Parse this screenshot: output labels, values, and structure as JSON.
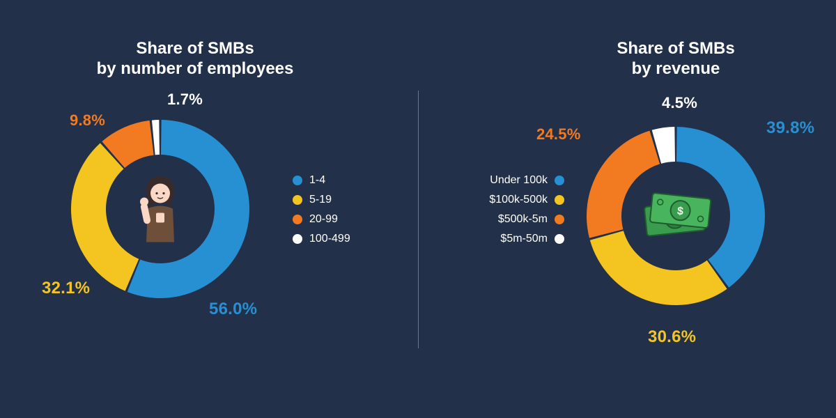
{
  "background_color": "#223049",
  "divider_color": "#9aa4b4",
  "title_color": "#ffffff",
  "title_fontsize": 24,
  "label_fontsize_large": 24,
  "label_fontsize_medium": 22,
  "legend_fontsize": 16,
  "colors": {
    "blue": "#2790d2",
    "yellow": "#f4c521",
    "orange": "#f27b21",
    "white": "#ffffff"
  },
  "left": {
    "type": "donut",
    "title": "Share of SMBs\nby number of employees",
    "title_line1": "Share of SMBs",
    "title_line2": "by number of employees",
    "slices": [
      {
        "label": "1-4",
        "value": 56.0,
        "color": "#2790d2",
        "text": "56.0%"
      },
      {
        "label": "5-19",
        "value": 32.1,
        "color": "#f4c521",
        "text": "32.1%"
      },
      {
        "label": "20-99",
        "value": 9.8,
        "color": "#f27b21",
        "text": "9.8%"
      },
      {
        "label": "100-499",
        "value": 1.7,
        "color": "#ffffff",
        "text": "1.7%"
      }
    ],
    "donut": {
      "outer_radius": 128,
      "inner_radius": 78,
      "start_angle_deg": 0,
      "gap_deg": 1.5
    },
    "legend_side": "right",
    "icon": "person"
  },
  "right": {
    "type": "donut",
    "title": "Share of SMBs\nby revenue",
    "title_line1": "Share of SMBs",
    "title_line2": "by revenue",
    "slices": [
      {
        "label": "Under 100k",
        "value": 39.8,
        "color": "#2790d2",
        "text": "39.8%"
      },
      {
        "label": "$100k-500k",
        "value": 30.6,
        "color": "#f4c521",
        "text": "30.6%"
      },
      {
        "label": "$500k-5m",
        "value": 24.5,
        "color": "#f27b21",
        "text": "24.5%"
      },
      {
        "label": "$5m-50m",
        "value": 4.5,
        "color": "#ffffff",
        "text": "4.5%"
      }
    ],
    "donut": {
      "outer_radius": 128,
      "inner_radius": 78,
      "start_angle_deg": 0,
      "gap_deg": 1.5
    },
    "legend_side": "left",
    "icon": "money"
  }
}
